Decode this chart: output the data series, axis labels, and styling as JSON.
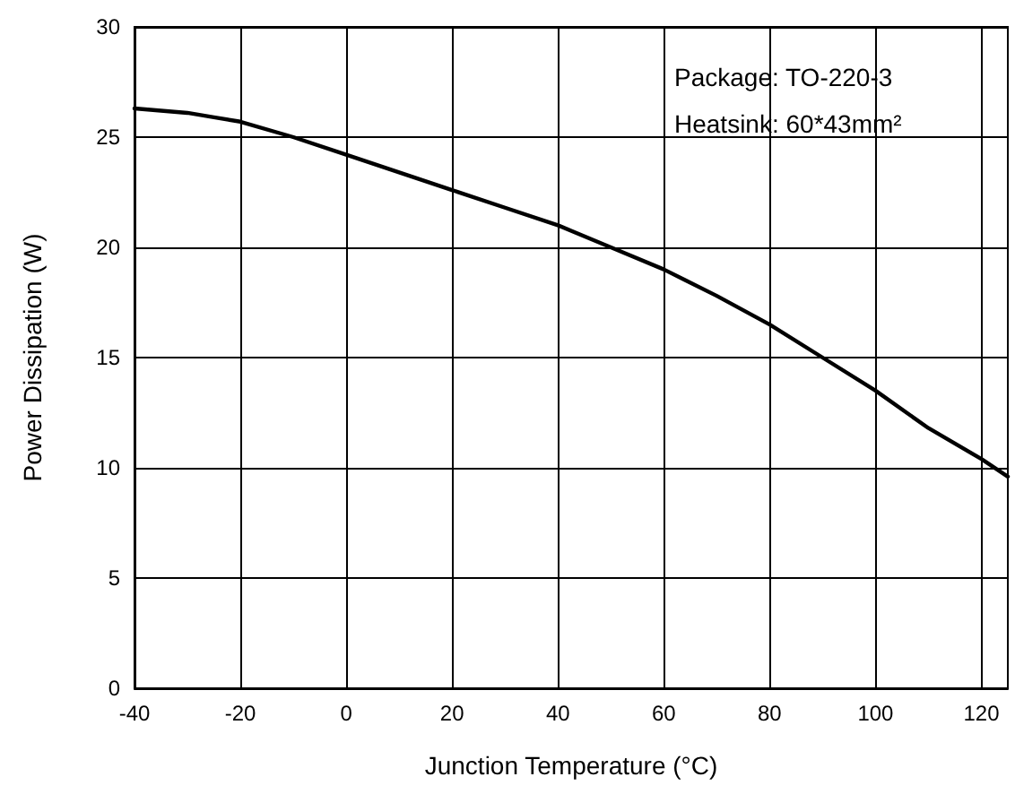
{
  "chart_data": {
    "type": "line",
    "xlabel": "Junction Temperature (°C)",
    "ylabel": "Power Dissipation (W)",
    "annotations": [
      "Package: TO-220-3",
      "Heatsink: 60*43mm²"
    ],
    "x": [
      -40,
      -35,
      -30,
      -25,
      -20,
      -10,
      0,
      10,
      20,
      30,
      40,
      50,
      60,
      70,
      80,
      90,
      100,
      110,
      120,
      125
    ],
    "series": [
      {
        "color": "#000000",
        "values": [
          26.3,
          26.2,
          26.1,
          25.9,
          25.7,
          25.0,
          24.2,
          23.4,
          22.6,
          21.8,
          21.0,
          20.0,
          19.0,
          17.8,
          16.5,
          15.0,
          13.5,
          11.8,
          10.4,
          9.6
        ]
      }
    ],
    "xlim": [
      -40,
      125
    ],
    "xticks": [
      -40,
      -20,
      0,
      20,
      40,
      60,
      80,
      100,
      120
    ],
    "ylim": [
      0,
      30
    ],
    "yticks": [
      0,
      5,
      10,
      15,
      20,
      25,
      30
    ],
    "grid": true,
    "marker": "none",
    "line_style": "solid"
  }
}
